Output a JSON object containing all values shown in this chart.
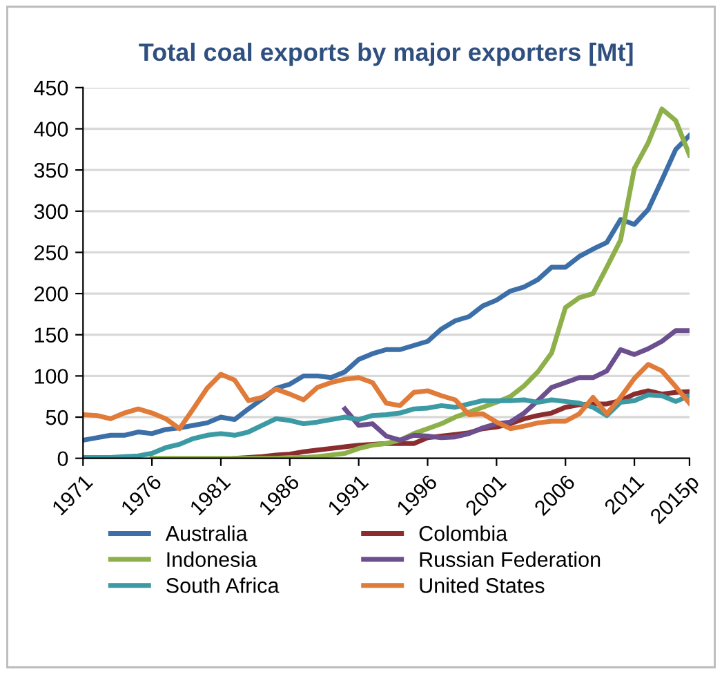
{
  "chart_data": {
    "type": "line",
    "title": "Total coal exports by major exporters [Mt]",
    "categories": [
      "1971",
      null,
      null,
      null,
      null,
      "1976",
      null,
      null,
      null,
      null,
      "1981",
      null,
      null,
      null,
      null,
      "1986",
      null,
      null,
      null,
      null,
      "1991",
      null,
      null,
      null,
      null,
      "1996",
      null,
      null,
      null,
      null,
      "2001",
      null,
      null,
      null,
      null,
      "2006",
      null,
      null,
      null,
      null,
      "2011",
      null,
      null,
      null,
      "2015p"
    ],
    "series": [
      {
        "name": "Australia",
        "color": "#3c6fa8",
        "values": [
          22,
          25,
          28,
          28,
          32,
          30,
          35,
          37,
          40,
          43,
          50,
          47,
          60,
          72,
          85,
          90,
          100,
          100,
          98,
          105,
          120,
          127,
          132,
          132,
          137,
          142,
          157,
          167,
          172,
          185,
          192,
          203,
          208,
          217,
          232,
          232,
          245,
          254,
          262,
          290,
          284,
          302,
          338,
          375,
          392
        ]
      },
      {
        "name": "Colombia",
        "color": "#8b2c2f",
        "values": [
          null,
          null,
          null,
          null,
          null,
          null,
          null,
          null,
          null,
          null,
          null,
          0,
          1,
          2,
          4,
          5,
          8,
          10,
          12,
          14,
          16,
          17,
          18,
          18,
          18,
          25,
          27,
          29,
          31,
          36,
          38,
          42,
          48,
          52,
          55,
          62,
          65,
          66,
          66,
          70,
          78,
          82,
          78,
          80,
          81
        ]
      },
      {
        "name": "Indonesia",
        "color": "#8db04a",
        "values": [
          null,
          null,
          null,
          null,
          null,
          0,
          0,
          0,
          0,
          0,
          0,
          0,
          0,
          0,
          0,
          1,
          1,
          2,
          4,
          6,
          12,
          16,
          18,
          22,
          30,
          36,
          42,
          50,
          56,
          62,
          68,
          75,
          88,
          105,
          128,
          183,
          195,
          200,
          232,
          265,
          352,
          383,
          424,
          410,
          368
        ]
      },
      {
        "name": "Russian Federation",
        "color": "#6b4f8e",
        "values": [
          null,
          null,
          null,
          null,
          null,
          null,
          null,
          null,
          null,
          null,
          null,
          null,
          null,
          null,
          null,
          null,
          null,
          null,
          null,
          60,
          40,
          42,
          27,
          22,
          28,
          27,
          25,
          26,
          30,
          37,
          42,
          44,
          55,
          70,
          86,
          92,
          98,
          98,
          106,
          132,
          126,
          133,
          142,
          155,
          155
        ]
      },
      {
        "name": "South Africa",
        "color": "#3b9aa3",
        "values": [
          1,
          1,
          1,
          2,
          3,
          6,
          13,
          17,
          24,
          28,
          30,
          28,
          32,
          40,
          48,
          46,
          42,
          44,
          47,
          50,
          47,
          52,
          53,
          55,
          60,
          61,
          64,
          62,
          66,
          70,
          70,
          70,
          71,
          68,
          71,
          69,
          67,
          62,
          52,
          68,
          70,
          77,
          76,
          69,
          76
        ]
      },
      {
        "name": "United States",
        "color": "#e07b39",
        "values": [
          53,
          52,
          48,
          55,
          60,
          55,
          48,
          36,
          60,
          85,
          102,
          95,
          70,
          74,
          84,
          78,
          71,
          86,
          92,
          96,
          98,
          92,
          67,
          64,
          80,
          82,
          76,
          71,
          53,
          54,
          44,
          36,
          39,
          43,
          45,
          45,
          54,
          74,
          54,
          74,
          97,
          114,
          106,
          87,
          67
        ]
      }
    ],
    "ylim": [
      0,
      450
    ],
    "yticks": [
      0,
      50,
      100,
      150,
      200,
      250,
      300,
      350,
      400,
      450
    ],
    "grid": "y",
    "legend": "bottom",
    "marker": "none",
    "line_style": "solid"
  }
}
